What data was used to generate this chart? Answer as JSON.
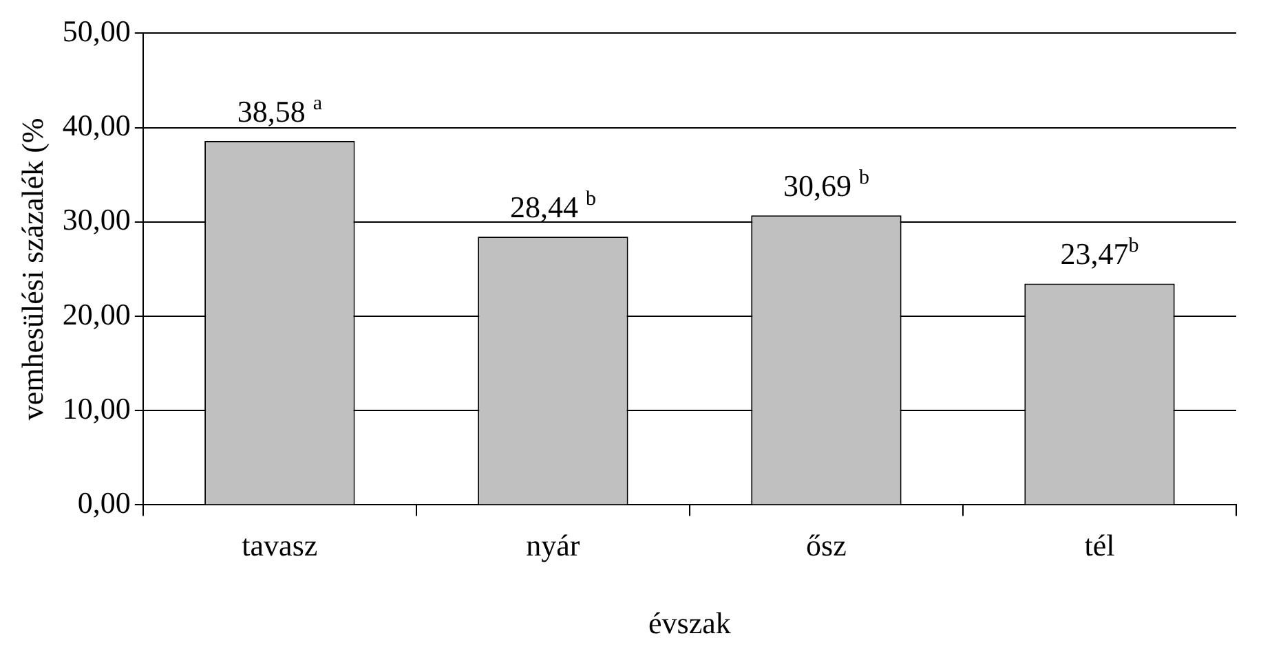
{
  "chart_data": {
    "type": "bar",
    "xlabel": "évszak",
    "ylabel": "vemhesülési százalék (%",
    "categories": [
      "tavasz",
      "nyár",
      "ősz",
      "tél"
    ],
    "values": [
      38.58,
      28.44,
      30.69,
      23.47
    ],
    "value_labels": [
      "38,58 $^{a}$",
      "28,44 $^{b}$",
      "30,69 $^{b}$",
      "23,47$^{b}$"
    ],
    "color": "#c0c0c0",
    "ylim": [
      0,
      50
    ],
    "yticks": [
      {
        "value": 0,
        "label": "0,00"
      },
      {
        "value": 10,
        "label": "10,00"
      },
      {
        "value": 20,
        "label": "20,00"
      },
      {
        "value": 30,
        "label": "30,00"
      },
      {
        "value": 40,
        "label": "40,00"
      },
      {
        "value": 50,
        "label": "50,00"
      }
    ],
    "grid": "y"
  }
}
